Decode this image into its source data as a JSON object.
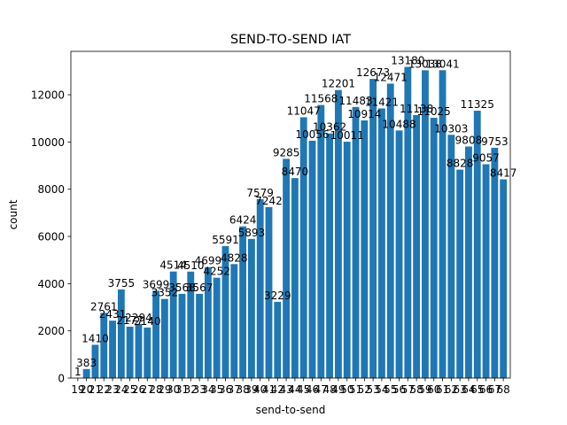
{
  "chart_data": {
    "type": "bar",
    "title": "SEND-TO-SEND IAT",
    "xlabel": "send-to-send",
    "ylabel": "count",
    "categories": [
      "19",
      "20",
      "21",
      "22",
      "23",
      "24",
      "25",
      "26",
      "27",
      "28",
      "29",
      "30",
      "31",
      "32",
      "33",
      "34",
      "35",
      "36",
      "37",
      "38",
      "39",
      "40",
      "41",
      "42",
      "43",
      "44",
      "45",
      "46",
      "47",
      "48",
      "49",
      "50",
      "51",
      "52",
      "53",
      "54",
      "55",
      "56",
      "57",
      "58",
      "59",
      "60",
      "61",
      "62",
      "63",
      "64",
      "65",
      "66",
      "67",
      "68"
    ],
    "values": [
      1,
      383,
      1410,
      2761,
      2431,
      3755,
      2177,
      2294,
      2140,
      3699,
      3352,
      4514,
      3568,
      4510,
      3567,
      4699,
      4252,
      5591,
      4828,
      6424,
      5893,
      7579,
      7242,
      3229,
      9285,
      8470,
      11047,
      10056,
      11568,
      10362,
      12201,
      10011,
      11483,
      10914,
      12673,
      11421,
      12471,
      10488,
      13180,
      11138,
      13038,
      11025,
      13041,
      10303,
      8828,
      9808,
      11325,
      9057,
      9753,
      8417
    ],
    "ylim": [
      0,
      13839
    ],
    "yticks": [
      0,
      2000,
      4000,
      6000,
      8000,
      10000,
      12000
    ],
    "bar_color": "#1f77b4",
    "grid": false,
    "legend": "none"
  }
}
